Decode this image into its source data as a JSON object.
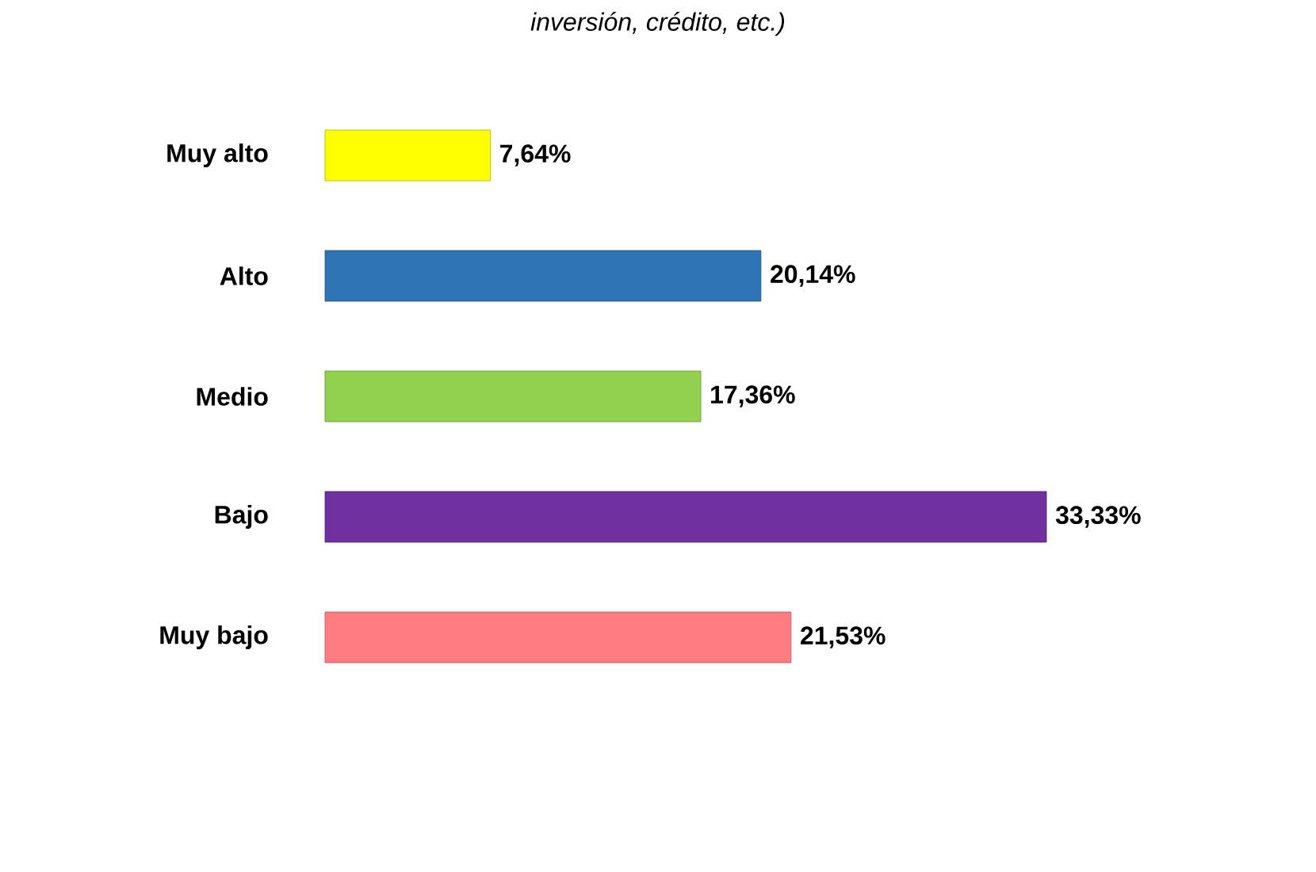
{
  "chart_data": {
    "type": "bar",
    "orientation": "horizontal",
    "title": "inversión, crédito, etc.)",
    "categories": [
      "Muy alto",
      "Alto",
      "Medio",
      "Bajo",
      "Muy bajo"
    ],
    "values": [
      7.64,
      20.14,
      17.36,
      33.33,
      21.53
    ],
    "value_labels": [
      "7,64%",
      "20,14%",
      "17,36%",
      "33,33%",
      "21,53%"
    ],
    "colors": [
      "#ffff00",
      "#2e75b6",
      "#92d050",
      "#7030a0",
      "#ff7c80"
    ]
  }
}
